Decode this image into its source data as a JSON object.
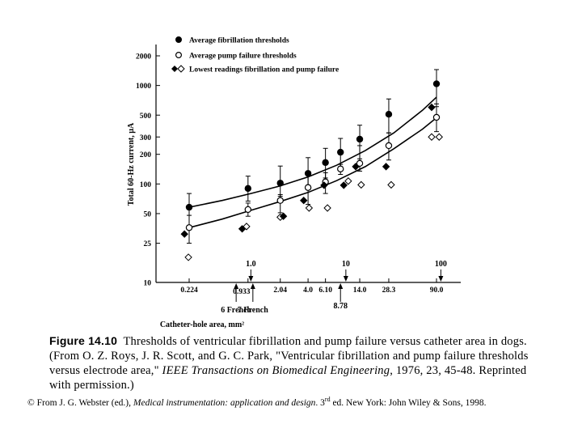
{
  "chart_data": {
    "type": "scatter",
    "x_scale": "log",
    "y_scale": "log",
    "ylabel": "Total 60-Hz current, µA",
    "xlabel": "Catheter-hole area, mm²",
    "ylim": [
      10,
      2500
    ],
    "y_ticks": [
      {
        "v": 10,
        "label": "10"
      },
      {
        "v": 25,
        "label": "25"
      },
      {
        "v": 50,
        "label": "50"
      },
      {
        "v": 100,
        "label": "100"
      },
      {
        "v": 200,
        "label": "200"
      },
      {
        "v": 300,
        "label": "300"
      },
      {
        "v": 500,
        "label": "500"
      },
      {
        "v": 1000,
        "label": "1000"
      },
      {
        "v": 2000,
        "label": "2000"
      }
    ],
    "x_ticks": [
      {
        "v": 0.224,
        "label": "0.224"
      },
      {
        "v": 0.933,
        "label": "0.933"
      },
      {
        "v": 2.04,
        "label": "2.04"
      },
      {
        "v": 4.0,
        "label": "4.0"
      },
      {
        "v": 6.1,
        "label": "6.10"
      },
      {
        "v": 14.0,
        "label": "14.0"
      },
      {
        "v": 28.3,
        "label": "28.3"
      },
      {
        "v": 90.0,
        "label": "90.0"
      }
    ],
    "x_markers_above": [
      {
        "v": 1.0,
        "label": "1.0"
      },
      {
        "v": 10,
        "label": "10"
      },
      {
        "v": 100,
        "label": "100"
      }
    ],
    "x_markers_below": [
      {
        "v": 0.7,
        "label": "6 French"
      },
      {
        "v": 1.05,
        "label": "7 French"
      },
      {
        "v": 8.78,
        "label": "8.78"
      }
    ],
    "series": [
      {
        "name": "Average fibrillation thresholds",
        "marker": "filled-circle",
        "x": [
          0.224,
          0.933,
          2.04,
          4.0,
          6.1,
          8.78,
          14.0,
          28.3,
          90.0
        ],
        "y": [
          58,
          90,
          102,
          128,
          165,
          210,
          285,
          510,
          1040
        ],
        "err_low": [
          38,
          67,
          75,
          90,
          115,
          150,
          180,
          330,
          610
        ],
        "err_high": [
          80,
          120,
          152,
          185,
          230,
          290,
          395,
          730,
          1450
        ]
      },
      {
        "name": "Average pump failure thresholds",
        "marker": "open-circle",
        "x": [
          0.224,
          0.933,
          2.04,
          4.0,
          6.1,
          8.78,
          14.0,
          28.3,
          90.0
        ],
        "y": [
          36,
          55,
          68,
          92,
          105,
          142,
          162,
          245,
          475
        ],
        "err_low": [
          25,
          47,
          51,
          62,
          80,
          125,
          135,
          175,
          340
        ],
        "err_high": [
          48,
          64,
          78,
          128,
          130,
          158,
          245,
          330,
          650
        ]
      },
      {
        "name": "Lowest readings fibrillation and pump failure",
        "marker": "diamond",
        "points": [
          {
            "x": 0.2,
            "y": 31,
            "filled": true
          },
          {
            "x": 0.22,
            "y": 18,
            "filled": false
          },
          {
            "x": 0.81,
            "y": 35,
            "filled": true
          },
          {
            "x": 0.9,
            "y": 37,
            "filled": false
          },
          {
            "x": 2.04,
            "y": 46,
            "filled": false
          },
          {
            "x": 2.2,
            "y": 47,
            "filled": true
          },
          {
            "x": 3.6,
            "y": 68,
            "filled": true
          },
          {
            "x": 4.1,
            "y": 57,
            "filled": false
          },
          {
            "x": 5.9,
            "y": 97,
            "filled": true
          },
          {
            "x": 6.4,
            "y": 57,
            "filled": false
          },
          {
            "x": 9.5,
            "y": 97,
            "filled": true
          },
          {
            "x": 10.6,
            "y": 107,
            "filled": false
          },
          {
            "x": 12.7,
            "y": 150,
            "filled": true
          },
          {
            "x": 14.5,
            "y": 98,
            "filled": false
          },
          {
            "x": 26.5,
            "y": 150,
            "filled": true
          },
          {
            "x": 30.0,
            "y": 98,
            "filled": false
          },
          {
            "x": 80,
            "y": 600,
            "filled": true
          },
          {
            "x": 80,
            "y": 300,
            "filled": false
          },
          {
            "x": 96,
            "y": 300,
            "filled": false
          }
        ]
      }
    ],
    "curves": [
      {
        "name": "fibrillation-fit",
        "x": [
          0.224,
          0.5,
          1,
          2,
          4,
          8,
          16,
          32,
          64,
          90
        ],
        "y": [
          58,
          68,
          80,
          95,
          118,
          155,
          218,
          330,
          560,
          760
        ]
      },
      {
        "name": "pump-fit",
        "x": [
          0.224,
          0.5,
          1,
          2,
          4,
          8,
          16,
          32,
          64,
          90
        ],
        "y": [
          36,
          44,
          54,
          66,
          82,
          108,
          150,
          228,
          360,
          470
        ]
      }
    ]
  },
  "caption": {
    "figure_label": "Figure 14.10",
    "text": "Thresholds of ventricular fibrillation and pump failure versus catheter area in dogs. (From O. Z. Roys, J. R. Scott, and G. C. Park, \"Ventricular fibrillation and pump failure thresholds versus electrode area,\" ",
    "journal": "IEEE Transactions on Biomedical Engineering",
    "text_end": ", 1976, 23, 45-48. Reprinted with permission.)"
  },
  "copyright": {
    "prefix": "© From J. G. Webster (ed.), ",
    "book": "Medical instrumentation: application and design",
    "edition_num": ". 3",
    "edition_sup": "rd",
    "suffix": " ed. New York: John Wiley & Sons, 1998."
  }
}
